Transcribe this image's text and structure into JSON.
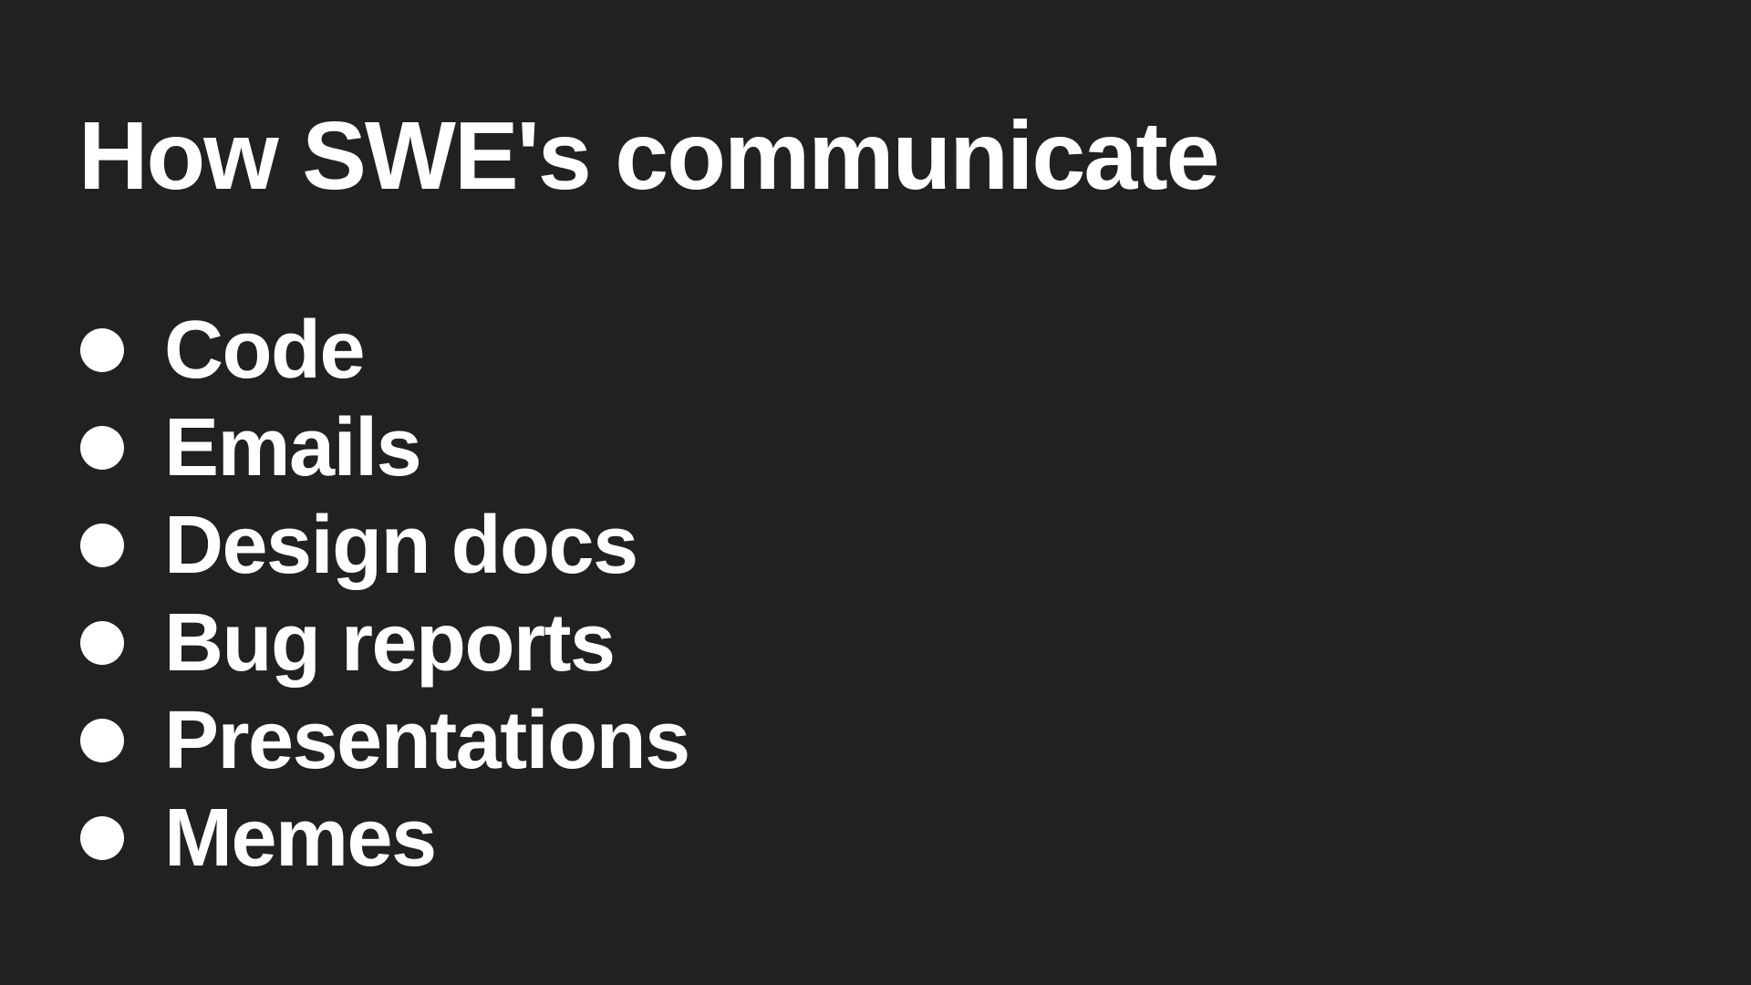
{
  "slide": {
    "title": "How SWE's communicate",
    "bullets": [
      "Code",
      "Emails",
      "Design docs",
      "Bug reports",
      "Presentations",
      "Memes"
    ]
  },
  "colors": {
    "background": "#212121",
    "text": "#ffffff"
  }
}
